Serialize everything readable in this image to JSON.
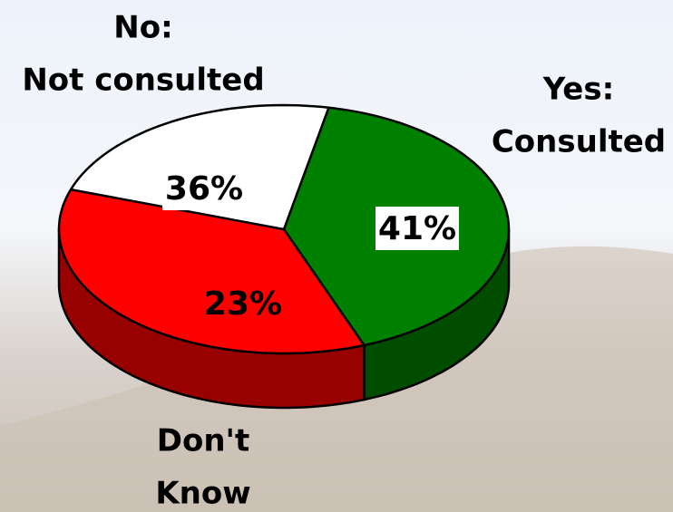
{
  "chart_data": {
    "type": "pie3d",
    "categories": [
      [
        "Yes:",
        "Consulted"
      ],
      [
        "No:",
        "Not consulted"
      ],
      [
        "Don't",
        "Know"
      ]
    ],
    "values": [
      41,
      36,
      23
    ],
    "value_labels": [
      "41%",
      "36%",
      "23%"
    ],
    "colors": [
      "#008000",
      "#ff0000",
      "#ffffff"
    ]
  }
}
